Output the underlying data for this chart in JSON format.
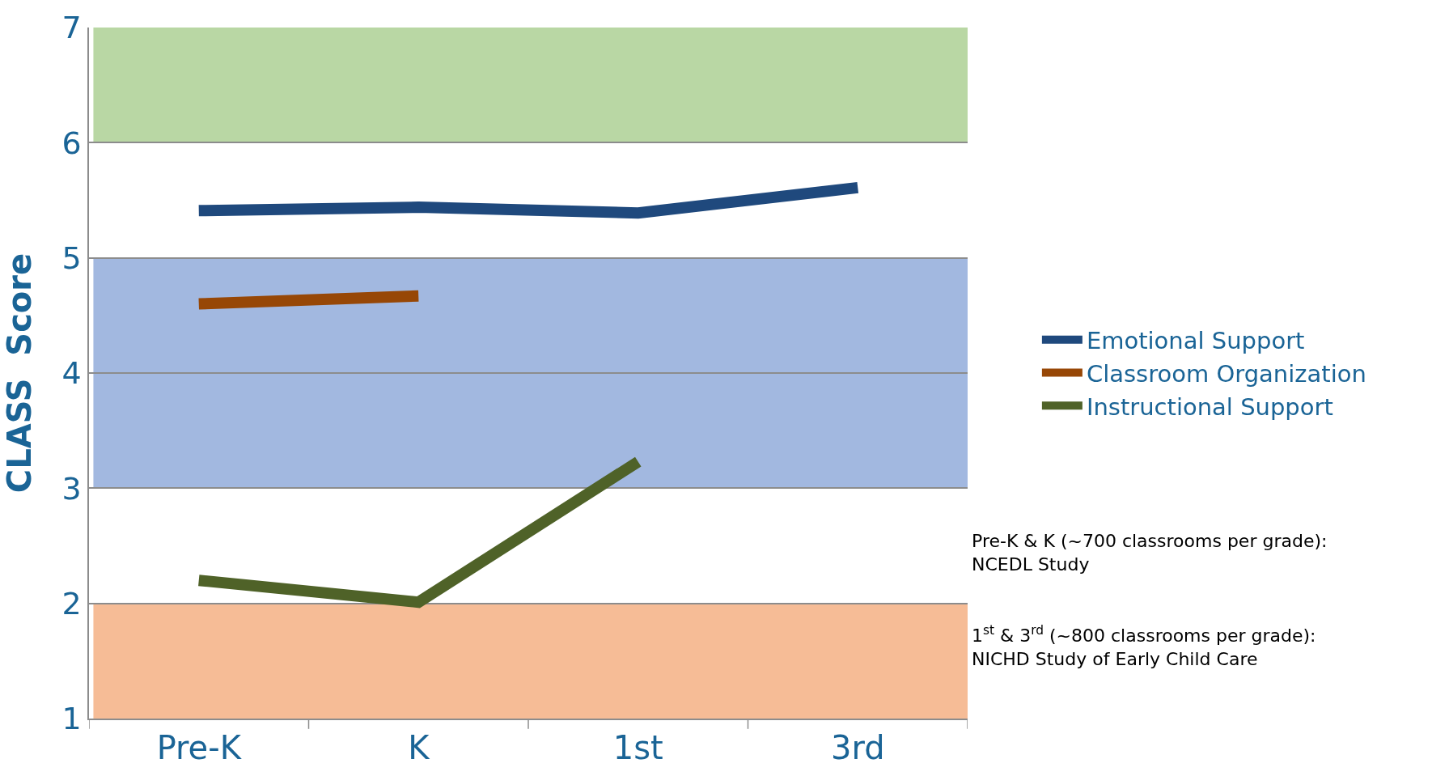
{
  "chart_data": {
    "type": "line",
    "ylabel": "CLASS  Score",
    "categories": [
      "Pre-K",
      "K",
      "1st",
      "3rd"
    ],
    "series": [
      {
        "name": "Emotional Support",
        "color": "#1f497d",
        "values": [
          5.41,
          5.44,
          5.39,
          5.61
        ]
      },
      {
        "name": "Classroom Organization",
        "color": "#974706",
        "values": [
          4.6,
          4.67,
          null,
          null
        ]
      },
      {
        "name": "Instructional Support",
        "color": "#4f6228",
        "values": [
          2.2,
          2.01,
          3.23,
          null
        ]
      }
    ],
    "ylim": [
      1,
      7
    ],
    "yticks": [
      1,
      2,
      3,
      4,
      5,
      6,
      7
    ],
    "grid": "y",
    "legend": "right",
    "marker": "none",
    "line_style": "solid",
    "bands": [
      {
        "axis": "y",
        "from": 6,
        "to": 7,
        "color": "#b9d7a4"
      },
      {
        "axis": "y",
        "from": 3,
        "to": 5,
        "color": "#a2b8e0"
      },
      {
        "axis": "y",
        "from": 1,
        "to": 2,
        "color": "#f6bc96"
      }
    ],
    "annotations": [
      "Pre-K & K (~700 classrooms per grade): NCEDL Study",
      "1$^{st}$ & 3$^{rd}$ (~800 classrooms per grade): NICHD Study of Early Child Care"
    ]
  }
}
